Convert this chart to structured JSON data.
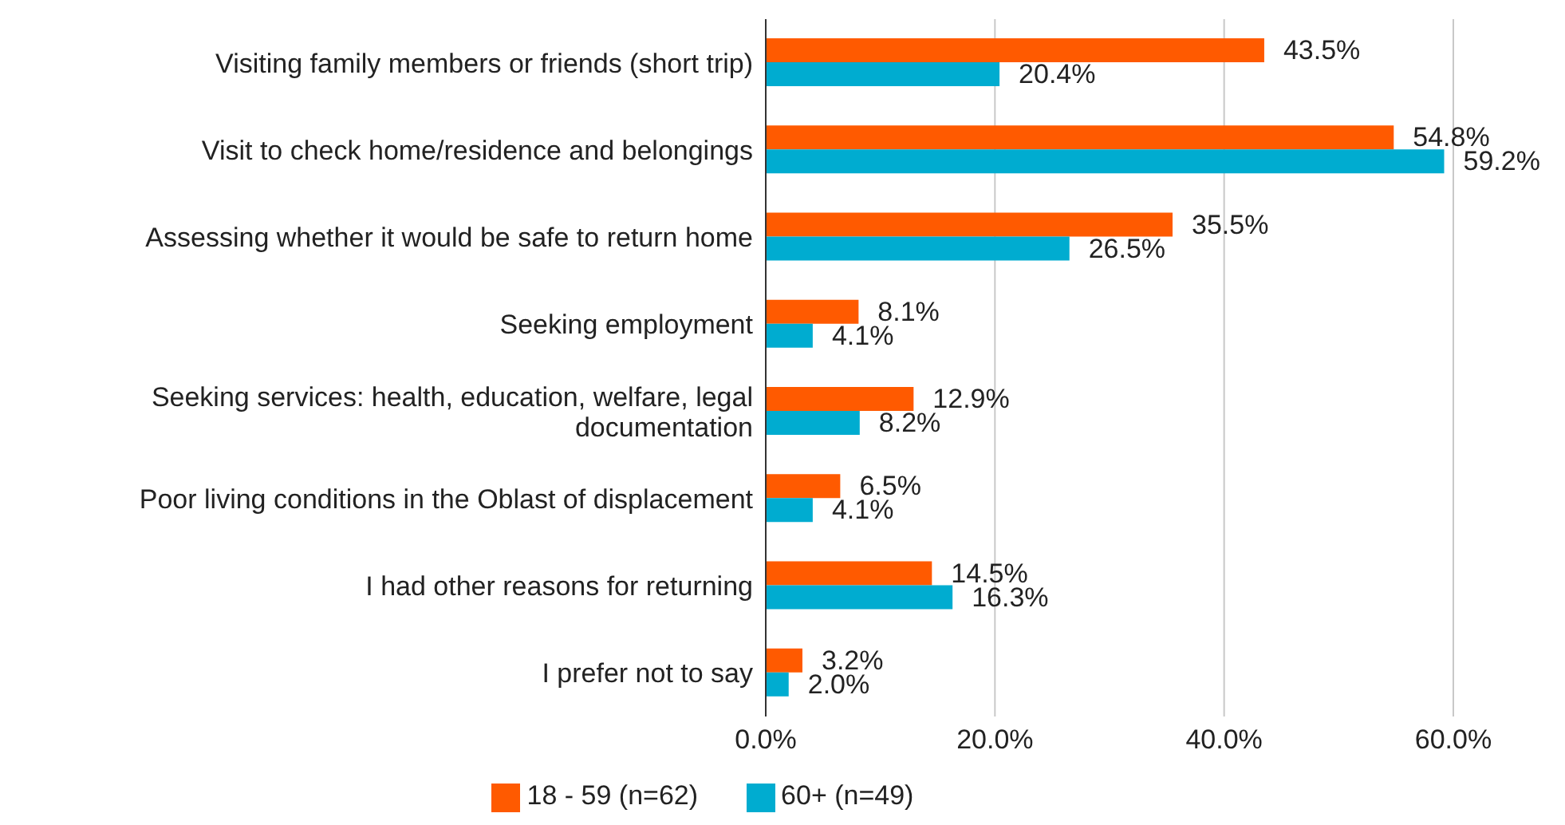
{
  "chart_data": {
    "type": "bar",
    "orientation": "horizontal",
    "categories": [
      "Visiting family members or friends (short trip)",
      "Visit to check home/residence and belongings",
      "Assessing whether it would be safe to return home",
      "Seeking employment",
      "Seeking services: health, education, welfare, legal documentation",
      "Poor living conditions in the Oblast of displacement",
      "I had other reasons for returning",
      "I prefer not to say"
    ],
    "series": [
      {
        "name": "18 - 59 (n=62)",
        "color": "#ff5a00",
        "values": [
          43.5,
          54.8,
          35.5,
          8.1,
          12.9,
          6.5,
          14.5,
          3.2
        ],
        "value_labels": [
          "43.5%",
          "54.8%",
          "35.5%",
          "8.1%",
          "12.9%",
          "6.5%",
          "14.5%",
          "3.2%"
        ]
      },
      {
        "name": "60+ (n=49)",
        "color": "#00acd0",
        "values": [
          20.4,
          59.2,
          26.5,
          4.1,
          8.2,
          4.1,
          16.3,
          2.0
        ],
        "value_labels": [
          "20.4%",
          "59.2%",
          "26.5%",
          "4.1%",
          "8.2%",
          "4.1%",
          "16.3%",
          "2.0%"
        ]
      }
    ],
    "xlim": [
      0,
      60
    ],
    "xticks": [
      {
        "value": 0,
        "label": "0.0%"
      },
      {
        "value": 20,
        "label": "20.0%"
      },
      {
        "value": 40,
        "label": "40.0%"
      },
      {
        "value": 60,
        "label": "60.0%"
      }
    ],
    "grid": "x",
    "legend": "bottom"
  }
}
